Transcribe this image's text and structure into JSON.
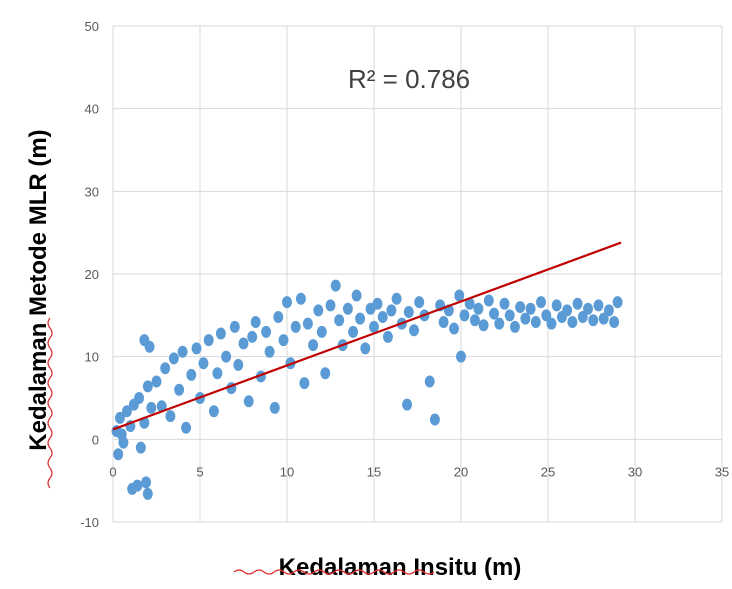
{
  "chart_data": {
    "type": "scatter",
    "xlabel": "Kedalaman Insitu (m)",
    "ylabel": "Kedalaman Metode MLR (m)",
    "annotation": {
      "r2_text": "R² = 0.786"
    },
    "xlim": [
      0,
      35
    ],
    "ylim": [
      -10,
      50
    ],
    "x_ticks": [
      0,
      5,
      10,
      15,
      20,
      25,
      30,
      35
    ],
    "y_ticks": [
      -10,
      0,
      10,
      20,
      30,
      40,
      50
    ],
    "grid": true,
    "colors": {
      "points": "#5b9bd5",
      "trendline": "#c00000",
      "grid": "#d9d9d9"
    },
    "trendline": {
      "x": [
        0,
        29.2
      ],
      "y": [
        1.2,
        23.8
      ]
    },
    "series": [
      {
        "values": [
          [
            0.2,
            1.0
          ],
          [
            0.4,
            2.6
          ],
          [
            0.6,
            -0.4
          ],
          [
            0.8,
            3.4
          ],
          [
            1.0,
            1.6
          ],
          [
            1.2,
            4.2
          ],
          [
            0.3,
            -1.8
          ],
          [
            0.5,
            0.6
          ],
          [
            1.5,
            5.0
          ],
          [
            1.8,
            2.0
          ],
          [
            2.0,
            6.4
          ],
          [
            2.2,
            3.8
          ],
          [
            1.6,
            -1.0
          ],
          [
            1.9,
            -5.2
          ],
          [
            1.1,
            -6.0
          ],
          [
            1.4,
            -5.6
          ],
          [
            2.0,
            -6.6
          ],
          [
            1.8,
            12.0
          ],
          [
            2.1,
            11.2
          ],
          [
            2.5,
            7.0
          ],
          [
            2.8,
            4.0
          ],
          [
            3.0,
            8.6
          ],
          [
            3.3,
            2.8
          ],
          [
            3.5,
            9.8
          ],
          [
            3.8,
            6.0
          ],
          [
            4.0,
            10.6
          ],
          [
            4.2,
            1.4
          ],
          [
            4.5,
            7.8
          ],
          [
            4.8,
            11.0
          ],
          [
            5.0,
            5.0
          ],
          [
            5.2,
            9.2
          ],
          [
            5.5,
            12.0
          ],
          [
            5.8,
            3.4
          ],
          [
            6.0,
            8.0
          ],
          [
            6.2,
            12.8
          ],
          [
            6.5,
            10.0
          ],
          [
            6.8,
            6.2
          ],
          [
            7.0,
            13.6
          ],
          [
            7.2,
            9.0
          ],
          [
            7.5,
            11.6
          ],
          [
            7.8,
            4.6
          ],
          [
            8.0,
            12.4
          ],
          [
            8.2,
            14.2
          ],
          [
            8.5,
            7.6
          ],
          [
            8.8,
            13.0
          ],
          [
            9.0,
            10.6
          ],
          [
            9.3,
            3.8
          ],
          [
            9.5,
            14.8
          ],
          [
            9.8,
            12.0
          ],
          [
            10.0,
            16.6
          ],
          [
            10.2,
            9.2
          ],
          [
            10.5,
            13.6
          ],
          [
            10.8,
            17.0
          ],
          [
            11.0,
            6.8
          ],
          [
            11.2,
            14.0
          ],
          [
            11.5,
            11.4
          ],
          [
            11.8,
            15.6
          ],
          [
            12.0,
            13.0
          ],
          [
            12.2,
            8.0
          ],
          [
            12.5,
            16.2
          ],
          [
            12.8,
            18.6
          ],
          [
            13.0,
            14.4
          ],
          [
            13.2,
            11.4
          ],
          [
            13.5,
            15.8
          ],
          [
            13.8,
            13.0
          ],
          [
            14.0,
            17.4
          ],
          [
            14.2,
            14.6
          ],
          [
            14.5,
            11.0
          ],
          [
            14.8,
            15.8
          ],
          [
            15.0,
            13.6
          ],
          [
            15.2,
            16.4
          ],
          [
            15.5,
            14.8
          ],
          [
            15.8,
            12.4
          ],
          [
            16.0,
            15.6
          ],
          [
            16.3,
            17.0
          ],
          [
            16.6,
            14.0
          ],
          [
            16.9,
            4.2
          ],
          [
            17.0,
            15.4
          ],
          [
            17.3,
            13.2
          ],
          [
            17.6,
            16.6
          ],
          [
            17.9,
            15.0
          ],
          [
            18.2,
            7.0
          ],
          [
            18.5,
            2.4
          ],
          [
            18.8,
            16.2
          ],
          [
            19.0,
            14.2
          ],
          [
            19.3,
            15.6
          ],
          [
            19.6,
            13.4
          ],
          [
            19.9,
            17.4
          ],
          [
            20.0,
            10.0
          ],
          [
            20.2,
            15.0
          ],
          [
            20.5,
            16.4
          ],
          [
            20.8,
            14.4
          ],
          [
            21.0,
            15.8
          ],
          [
            21.3,
            13.8
          ],
          [
            21.6,
            16.8
          ],
          [
            21.9,
            15.2
          ],
          [
            22.2,
            14.0
          ],
          [
            22.5,
            16.4
          ],
          [
            22.8,
            15.0
          ],
          [
            23.1,
            13.6
          ],
          [
            23.4,
            16.0
          ],
          [
            23.7,
            14.6
          ],
          [
            24.0,
            15.8
          ],
          [
            24.3,
            14.2
          ],
          [
            24.6,
            16.6
          ],
          [
            24.9,
            15.0
          ],
          [
            25.2,
            14.0
          ],
          [
            25.5,
            16.2
          ],
          [
            25.8,
            14.8
          ],
          [
            26.1,
            15.6
          ],
          [
            26.4,
            14.2
          ],
          [
            26.7,
            16.4
          ],
          [
            27.0,
            14.8
          ],
          [
            27.3,
            15.8
          ],
          [
            27.6,
            14.4
          ],
          [
            27.9,
            16.2
          ],
          [
            28.2,
            14.6
          ],
          [
            28.5,
            15.6
          ],
          [
            28.8,
            14.2
          ],
          [
            29.0,
            16.6
          ]
        ]
      }
    ]
  }
}
